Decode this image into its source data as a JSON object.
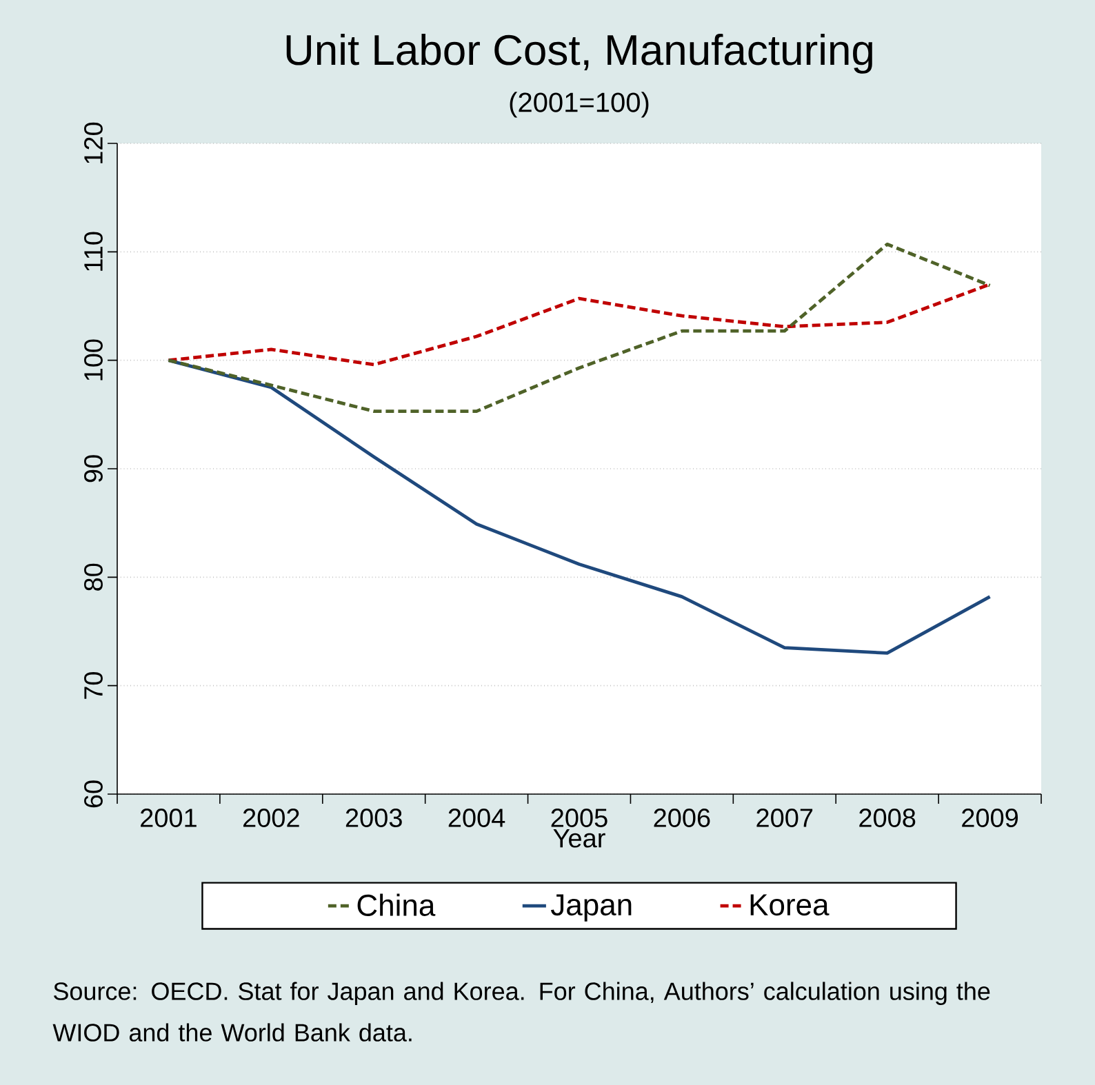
{
  "chart_data": {
    "type": "line",
    "title": "Unit Labor Cost, Manufacturing",
    "subtitle": "(2001=100)",
    "xlabel": "Year",
    "categories": [
      "2001",
      "2002",
      "2003",
      "2004",
      "2005",
      "2006",
      "2007",
      "2008",
      "2009"
    ],
    "series": [
      {
        "name": "China",
        "color": "#4f6228",
        "line_style": "dashed",
        "values": [
          100,
          97.7,
          95.3,
          95.3,
          99.3,
          102.7,
          102.7,
          110.7,
          106.9
        ]
      },
      {
        "name": "Japan",
        "color": "#1f497d",
        "line_style": "solid",
        "values": [
          100,
          97.5,
          91.1,
          84.9,
          81.2,
          78.2,
          73.5,
          73.0,
          78.2
        ]
      },
      {
        "name": "Korea",
        "color": "#c00000",
        "line_style": "dashed",
        "values": [
          100,
          101.0,
          99.6,
          102.2,
          105.7,
          104.1,
          103.1,
          103.5,
          107.0
        ]
      }
    ],
    "ylim": [
      60,
      120
    ],
    "yticks": [
      60,
      70,
      80,
      90,
      100,
      110,
      120
    ],
    "grid": "y",
    "legend": "bottom",
    "marker": "none",
    "annotations": [
      "Source: OECD. Stat for Japan and Korea. For China, Authors’ calculation using the WIOD and the World Bank data."
    ]
  }
}
